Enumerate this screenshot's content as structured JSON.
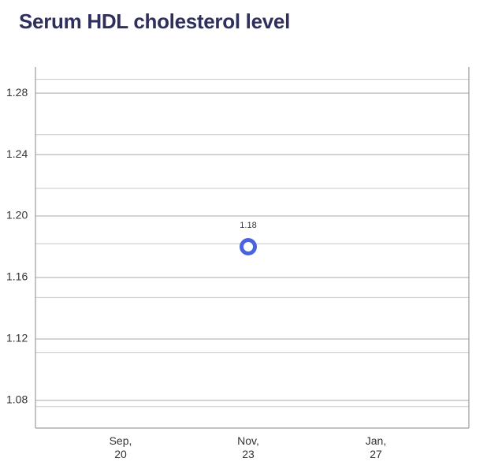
{
  "chart_data": {
    "type": "scatter",
    "title": "Serum HDL cholesterol level",
    "categories": [
      "Sep,\n20",
      "Nov,\n23",
      "Jan,\n27"
    ],
    "series": [
      {
        "name": null,
        "color": "#4a63e0",
        "values": [
          null,
          1.18,
          null
        ]
      }
    ],
    "ylim": [
      1.062,
      1.297
    ],
    "yticks": [
      1.08,
      1.12,
      1.16,
      {
        "value": 1.2,
        "label": "1.20"
      },
      1.24,
      1.28
    ],
    "minor_grid": [
      1.076,
      1.111,
      1.147,
      1.182,
      1.218,
      1.253,
      1.289
    ],
    "grid": true
  }
}
